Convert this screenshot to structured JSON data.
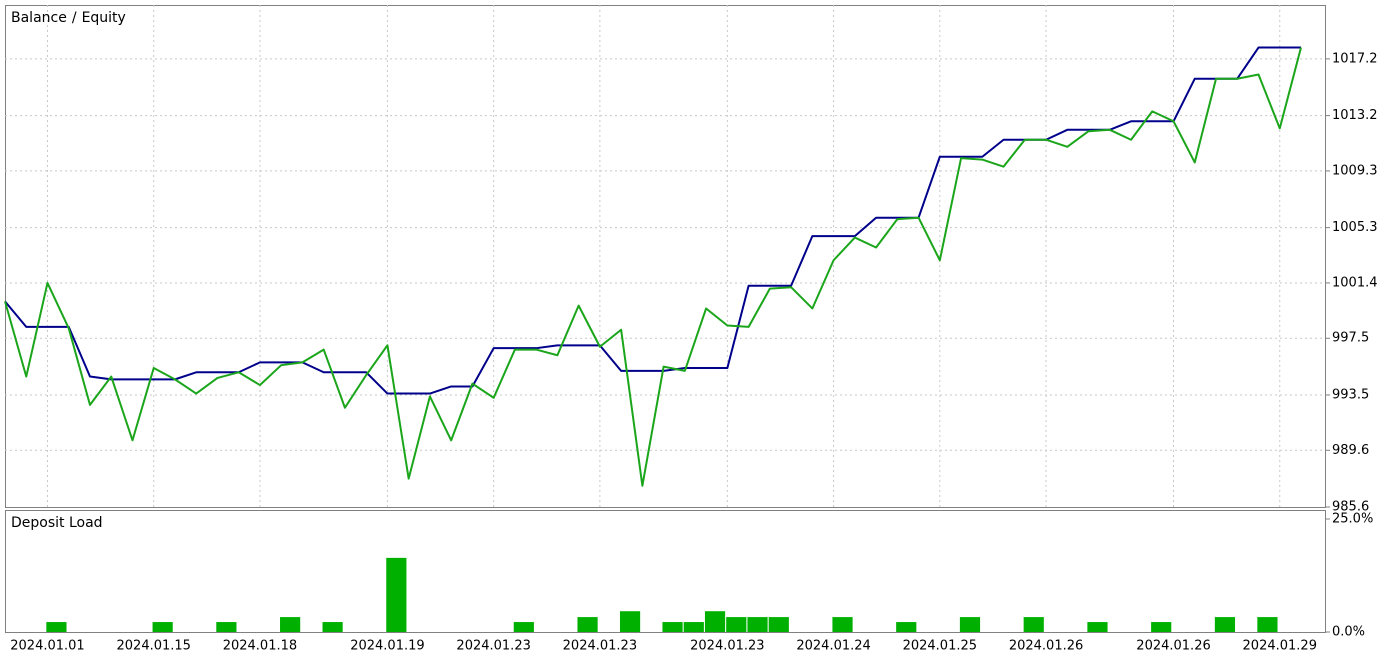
{
  "chart_data": [
    {
      "type": "line",
      "categories": [
        null,
        null,
        "2024.01.01",
        null,
        null,
        null,
        null,
        "2024.01.15",
        null,
        null,
        null,
        null,
        "2024.01.18",
        null,
        null,
        null,
        null,
        null,
        "2024.01.19",
        null,
        null,
        null,
        null,
        "2024.01.23",
        null,
        null,
        null,
        null,
        "2024.01.23",
        null,
        null,
        null,
        null,
        null,
        "2024.01.23",
        null,
        null,
        null,
        null,
        "2024.01.24",
        null,
        null,
        null,
        null,
        "2024.01.25",
        null,
        null,
        null,
        null,
        "2024.01.26",
        null,
        null,
        null,
        null,
        null,
        "2024.01.26",
        null,
        null,
        null,
        null,
        "2024.01.29",
        null
      ],
      "series": [
        {
          "name": "Balance",
          "color": "#00008b",
          "values": [
            1000.1,
            998.3,
            998.3,
            998.3,
            994.8,
            994.6,
            994.6,
            994.6,
            994.6,
            995.1,
            995.1,
            995.1,
            995.8,
            995.8,
            995.8,
            995.1,
            995.1,
            995.1,
            993.6,
            993.6,
            993.6,
            994.1,
            994.1,
            996.8,
            996.8,
            996.8,
            997.0,
            997.0,
            997.0,
            995.2,
            995.2,
            995.2,
            995.4,
            995.4,
            995.4,
            1001.2,
            1001.2,
            1001.2,
            1004.7,
            1004.7,
            1004.7,
            1006.0,
            1006.0,
            1006.0,
            1010.3,
            1010.3,
            1010.3,
            1011.5,
            1011.5,
            1011.5,
            1012.2,
            1012.2,
            1012.2,
            1012.8,
            1012.8,
            1012.8,
            1015.8,
            1015.8,
            1015.8,
            1018.0,
            1018.0,
            1018.0
          ]
        },
        {
          "name": "Equity",
          "color": "#1aa51a",
          "values": [
            1000.1,
            994.8,
            1001.4,
            998.2,
            992.8,
            994.8,
            990.3,
            995.4,
            994.6,
            993.6,
            994.7,
            995.1,
            994.2,
            995.6,
            995.8,
            996.7,
            992.6,
            994.9,
            997.0,
            987.6,
            993.4,
            990.3,
            994.3,
            993.3,
            996.7,
            996.7,
            996.3,
            999.8,
            996.9,
            998.1,
            987.1,
            995.5,
            995.2,
            999.6,
            998.4,
            998.3,
            1001.0,
            1001.1,
            999.6,
            1003.0,
            1004.6,
            1003.9,
            1005.9,
            1006.0,
            1003.0,
            1010.2,
            1010.1,
            1009.6,
            1011.5,
            1011.5,
            1011.0,
            1012.1,
            1012.2,
            1011.5,
            1013.5,
            1012.8,
            1009.9,
            1015.8,
            1015.8,
            1016.1,
            1012.3,
            1018.0
          ]
        }
      ],
      "legend_separator": "/",
      "legend": "top-left",
      "ylim": [
        985.6,
        1021.0
      ],
      "yticks": [
        985.6,
        989.6,
        993.5,
        997.5,
        1001.4,
        1005.3,
        1009.3,
        1013.2,
        1017.2
      ],
      "grid": true
    },
    {
      "type": "bar",
      "title": "Deposit Load",
      "color": "#00b000",
      "values": [
        0,
        0,
        2.2,
        0,
        0,
        0,
        0,
        2.2,
        0,
        0,
        2.2,
        0,
        0,
        3.3,
        0,
        2.2,
        0,
        0,
        16.4,
        0,
        0,
        0,
        0,
        0,
        2.2,
        0,
        0,
        3.3,
        0,
        4.6,
        0,
        2.2,
        2.2,
        4.6,
        3.3,
        3.3,
        3.3,
        0,
        0,
        3.3,
        0,
        0,
        2.2,
        0,
        0,
        3.3,
        0,
        0,
        3.3,
        0,
        0,
        2.2,
        0,
        0,
        2.2,
        0,
        0,
        3.3,
        0,
        3.3,
        0,
        0
      ],
      "ylim": [
        0,
        25
      ],
      "yticks": [
        {
          "value": 0,
          "label": "0.0%"
        },
        {
          "value": 25,
          "label": "25.0%"
        }
      ],
      "grid": false
    }
  ]
}
